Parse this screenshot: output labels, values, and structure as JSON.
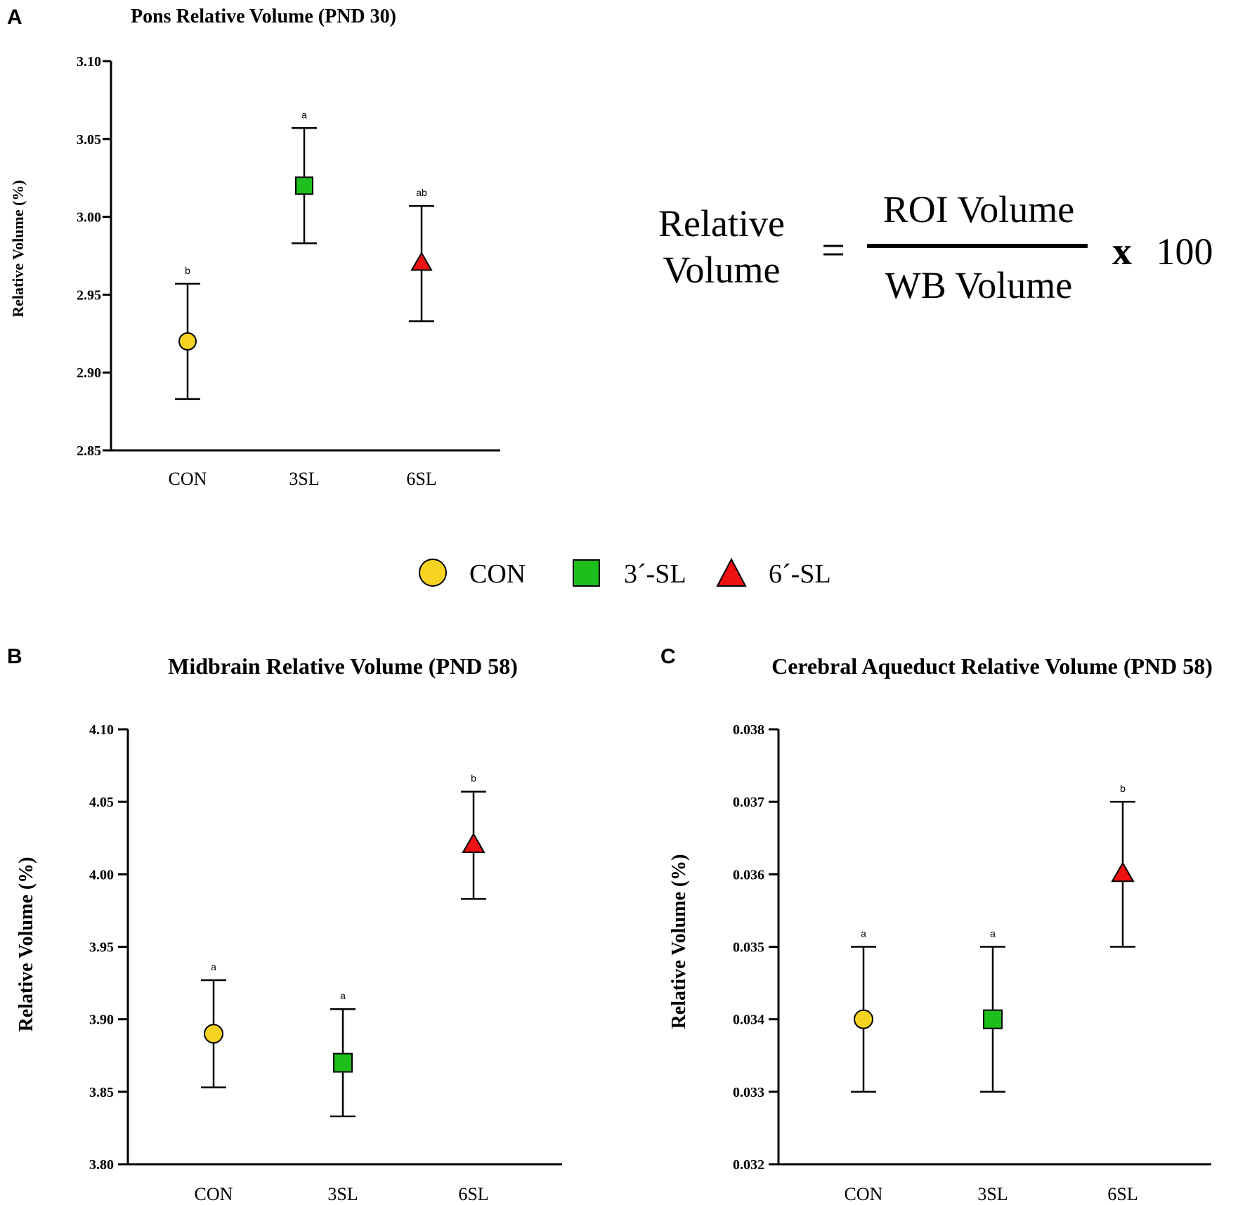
{
  "legend": [
    {
      "label": "CON",
      "marker": "circle",
      "color": "#F5D320"
    },
    {
      "label": "3´-SL",
      "marker": "square",
      "color": "#1DBF1D"
    },
    {
      "label": "6´-SL",
      "marker": "triangle",
      "color": "#EE1111"
    }
  ],
  "formula": {
    "lhs_line1": "Relative",
    "lhs_line2": "Volume",
    "equals": "=",
    "numerator": "ROI Volume",
    "denominator": "WB Volume",
    "times": "x",
    "factor": "100"
  },
  "chart_data": [
    {
      "panel": "A",
      "type": "scatter",
      "title": "Pons Relative Volume (PND 30)",
      "xlabel": "",
      "ylabel": "Relative Volume (%)",
      "ylim": [
        2.85,
        3.1
      ],
      "yticks": [
        "2.85",
        "2.90",
        "2.95",
        "3.00",
        "3.05",
        "3.10"
      ],
      "categories": [
        "CON",
        "3SL",
        "6SL"
      ],
      "points": [
        {
          "category": "CON",
          "mean": 2.92,
          "low": 2.883,
          "high": 2.957,
          "sig": "b",
          "marker": "circle",
          "color": "#F5D320"
        },
        {
          "category": "3SL",
          "mean": 3.02,
          "low": 2.983,
          "high": 3.057,
          "sig": "a",
          "marker": "square",
          "color": "#1DBF1D"
        },
        {
          "category": "6SL",
          "mean": 2.97,
          "low": 2.933,
          "high": 3.007,
          "sig": "ab",
          "marker": "triangle",
          "color": "#EE1111"
        }
      ]
    },
    {
      "panel": "B",
      "type": "scatter",
      "title": "Midbrain Relative Volume (PND 58)",
      "xlabel": "",
      "ylabel": "Relative Volume (%)",
      "ylim": [
        3.8,
        4.1
      ],
      "yticks": [
        "3.80",
        "3.85",
        "3.90",
        "3.95",
        "4.00",
        "4.05",
        "4.10"
      ],
      "categories": [
        "CON",
        "3SL",
        "6SL"
      ],
      "points": [
        {
          "category": "CON",
          "mean": 3.89,
          "low": 3.853,
          "high": 3.927,
          "sig": "a",
          "marker": "circle",
          "color": "#F5D320"
        },
        {
          "category": "3SL",
          "mean": 3.87,
          "low": 3.833,
          "high": 3.907,
          "sig": "a",
          "marker": "square",
          "color": "#1DBF1D"
        },
        {
          "category": "6SL",
          "mean": 4.02,
          "low": 3.983,
          "high": 4.057,
          "sig": "b",
          "marker": "triangle",
          "color": "#EE1111"
        }
      ]
    },
    {
      "panel": "C",
      "type": "scatter",
      "title": "Cerebral Aqueduct Relative Volume (PND 58)",
      "xlabel": "",
      "ylabel": "Relative Volume (%)",
      "ylim": [
        0.032,
        0.038
      ],
      "yticks": [
        "0.032",
        "0.033",
        "0.034",
        "0.035",
        "0.036",
        "0.037",
        "0.038"
      ],
      "categories": [
        "CON",
        "3SL",
        "6SL"
      ],
      "points": [
        {
          "category": "CON",
          "mean": 0.034,
          "low": 0.033,
          "high": 0.035,
          "sig": "a",
          "marker": "circle",
          "color": "#F5D320"
        },
        {
          "category": "3SL",
          "mean": 0.034,
          "low": 0.033,
          "high": 0.035,
          "sig": "a",
          "marker": "square",
          "color": "#1DBF1D"
        },
        {
          "category": "6SL",
          "mean": 0.036,
          "low": 0.035,
          "high": 0.037,
          "sig": "b",
          "marker": "triangle",
          "color": "#EE1111"
        }
      ]
    }
  ]
}
